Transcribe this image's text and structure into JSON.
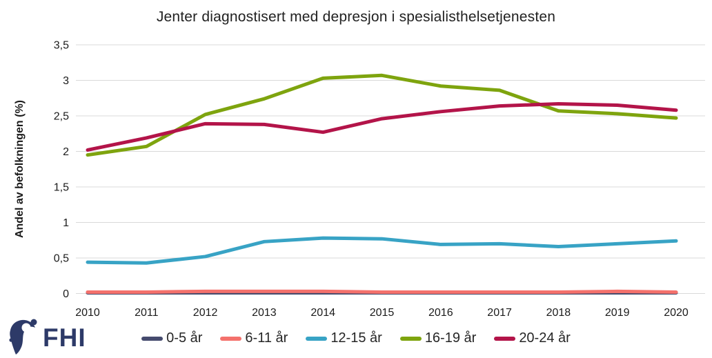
{
  "logo": {
    "text": "FHI",
    "color": "#2d3a68"
  },
  "colors": {
    "background": "#ffffff",
    "gridline": "#d9d9d9",
    "axis_text": "#1a1a1a",
    "title_text": "#212121",
    "legend_text": "#262626"
  },
  "chart_data": {
    "type": "line",
    "title": "Jenter diagnostisert med depresjon i spesialisthelsetjenesten",
    "xlabel": "",
    "ylabel": "Andel av befolkningen (%)",
    "ylim": [
      0,
      3.5
    ],
    "grid": "horizontal",
    "legend_position": "bottom",
    "decimal_separator": ",",
    "x_tick_labels": [
      "2010",
      "2011",
      "2012",
      "2013",
      "2014",
      "2015",
      "2016",
      "2017",
      "2018",
      "2019",
      "2020"
    ],
    "y_tick_values": [
      0,
      0.5,
      1,
      1.5,
      2,
      2.5,
      3,
      3.5
    ],
    "y_tick_labels": [
      "0",
      "0,5",
      "1",
      "1,5",
      "2",
      "2,5",
      "3",
      "3,5"
    ],
    "series": [
      {
        "name": "0-5 år",
        "color": "#454b6e",
        "values": [
          0.01,
          0.01,
          0.01,
          0.01,
          0.01,
          0.01,
          0.01,
          0.01,
          0.01,
          0.01,
          0.01
        ]
      },
      {
        "name": "6-11 år",
        "color": "#f4716c",
        "values": [
          0.02,
          0.02,
          0.03,
          0.03,
          0.03,
          0.02,
          0.02,
          0.02,
          0.02,
          0.03,
          0.02
        ]
      },
      {
        "name": "12-15 år",
        "color": "#38a3c5",
        "values": [
          0.44,
          0.43,
          0.52,
          0.73,
          0.78,
          0.77,
          0.69,
          0.7,
          0.66,
          0.7,
          0.74
        ]
      },
      {
        "name": "16-19 år",
        "color": "#7ea40e",
        "values": [
          1.95,
          2.07,
          2.52,
          2.74,
          3.03,
          3.07,
          2.92,
          2.86,
          2.57,
          2.53,
          2.47
        ]
      },
      {
        "name": "20-24 år",
        "color": "#b31449",
        "values": [
          2.02,
          2.19,
          2.39,
          2.38,
          2.27,
          2.46,
          2.56,
          2.64,
          2.67,
          2.65,
          2.58
        ]
      }
    ]
  }
}
